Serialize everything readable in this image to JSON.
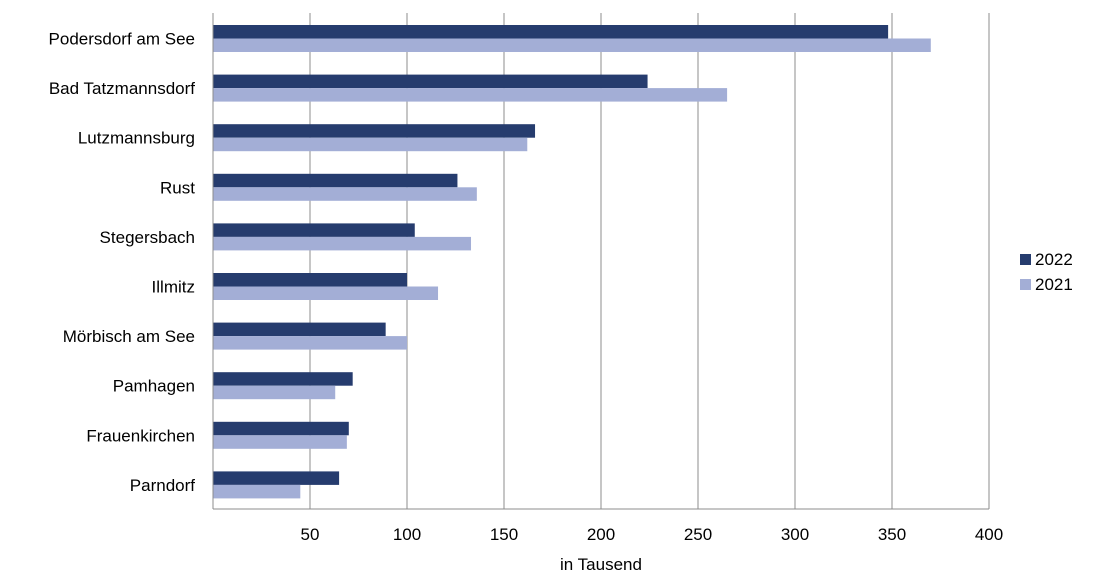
{
  "chart_data": {
    "type": "bar",
    "orientation": "horizontal",
    "categories": [
      "Podersdorf am See",
      "Bad Tatzmannsdorf",
      "Lutzmannsburg",
      "Rust",
      "Stegersbach",
      "Illmitz",
      "Mörbisch am See",
      "Pamhagen",
      "Frauenkirchen",
      "Parndorf"
    ],
    "series": [
      {
        "name": "2022",
        "color": "#263c6e",
        "values": [
          348,
          224,
          166,
          126,
          104,
          100,
          89,
          72,
          70,
          65
        ]
      },
      {
        "name": "2021",
        "color": "#a3aed6",
        "values": [
          370,
          265,
          162,
          136,
          133,
          116,
          100,
          63,
          69,
          45
        ]
      }
    ],
    "xlim": [
      0,
      400
    ],
    "xticks": [
      50,
      100,
      150,
      200,
      250,
      300,
      350,
      400
    ],
    "xlabel": "in Tausend",
    "ylabel": "",
    "title": "",
    "grid": true,
    "legend_position": "right"
  }
}
